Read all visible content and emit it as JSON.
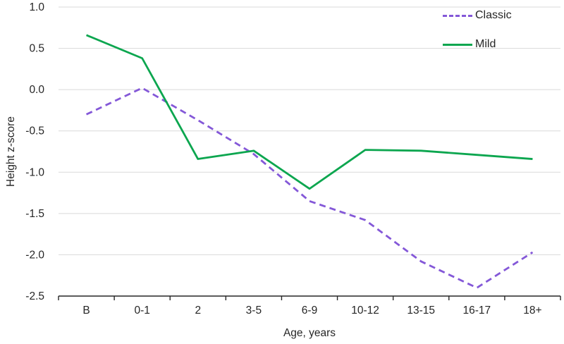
{
  "chart_data": {
    "type": "line",
    "title": "",
    "categories": [
      "B",
      "0-1",
      "2",
      "3-5",
      "6-9",
      "10-12",
      "13-15",
      "16-17",
      "18+"
    ],
    "series": [
      {
        "name": "Classic",
        "style": "dashed",
        "color": "#8458D8",
        "values": [
          -0.3,
          0.02,
          -0.37,
          -0.78,
          -1.35,
          -1.58,
          -2.08,
          -2.4,
          -1.97
        ]
      },
      {
        "name": "Mild",
        "style": "solid",
        "color": "#0CA64F",
        "values": [
          0.66,
          0.38,
          -0.84,
          -0.74,
          -1.2,
          -0.73,
          -0.74,
          -0.79,
          -0.84
        ]
      }
    ],
    "xlabel": "Age, years",
    "ylabel": "Height z-score",
    "ylim": [
      -2.5,
      1.0
    ],
    "ytick_step": 0.5,
    "ytick_labels": [
      "1.0",
      "0.5",
      "0.0",
      "-0.5",
      "-1.0",
      "-1.5",
      "-2.0",
      "-2.5"
    ],
    "grid": true,
    "legend_position": "top-right"
  },
  "colors": {
    "grid": "#D9D9D9",
    "axis": "#262626",
    "text": "#262626",
    "background": "#FFFFFF"
  }
}
